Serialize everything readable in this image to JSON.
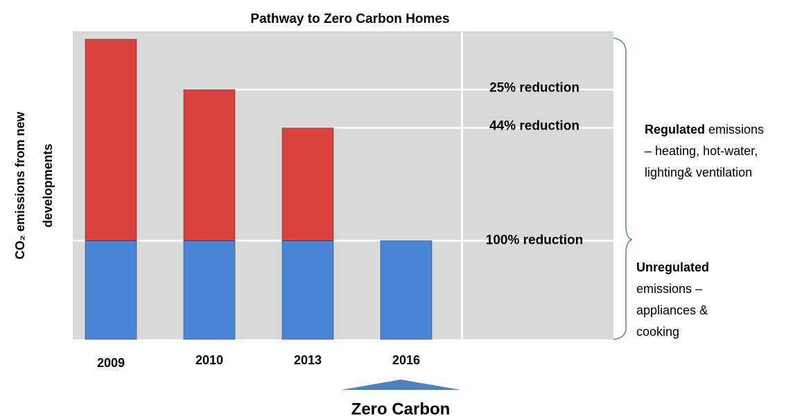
{
  "chart_data": {
    "type": "bar",
    "stacked": true,
    "title": "Pathway to Zero Carbon Homes",
    "y_label": [
      "CO₂ emissions from new",
      "developments"
    ],
    "x_label": "Zero Carbon",
    "categories": [
      "2009",
      "2010",
      "2013",
      "2016"
    ],
    "series": [
      {
        "name": "Unregulated",
        "color": "#4a86d8",
        "values": [
          49,
          49,
          49,
          49
        ],
        "description": [
          "emissions –",
          "appliances &",
          "cooking"
        ]
      },
      {
        "name": "Regulated",
        "color": "#d9423f",
        "values": [
          100,
          75,
          56,
          0
        ],
        "description": [
          "emissions",
          "– heating, hot-water,",
          "lighting& ventilation"
        ]
      }
    ],
    "annotations": [
      "25% reduction",
      "44% reduction",
      "100% reduction"
    ],
    "ylim": [
      0,
      153
    ]
  }
}
